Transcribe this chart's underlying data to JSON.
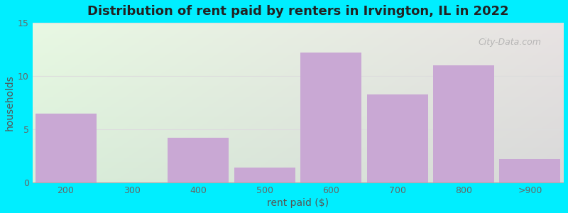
{
  "title": "Distribution of rent paid by renters in Irvington, IL in 2022",
  "categories": [
    "200",
    "300",
    "400",
    "500",
    "600",
    "700",
    "800",
    ">900"
  ],
  "values": [
    6.5,
    0,
    4.2,
    1.4,
    12.2,
    8.3,
    11.0,
    2.2
  ],
  "bar_color": "#c9a8d4",
  "bar_edge_color": "#b8a0c8",
  "xlabel": "rent paid ($)",
  "ylabel": "households",
  "ylim": [
    0,
    15
  ],
  "yticks": [
    0,
    5,
    10,
    15
  ],
  "title_fontsize": 13,
  "axis_label_fontsize": 10,
  "tick_fontsize": 9,
  "grid_color": "#dddddd",
  "watermark_text": "City-Data.com",
  "outer_bg_color": "#00eeff",
  "plot_bg_left_color": "#d8efd8",
  "plot_bg_right_color": "#f5f5f5"
}
